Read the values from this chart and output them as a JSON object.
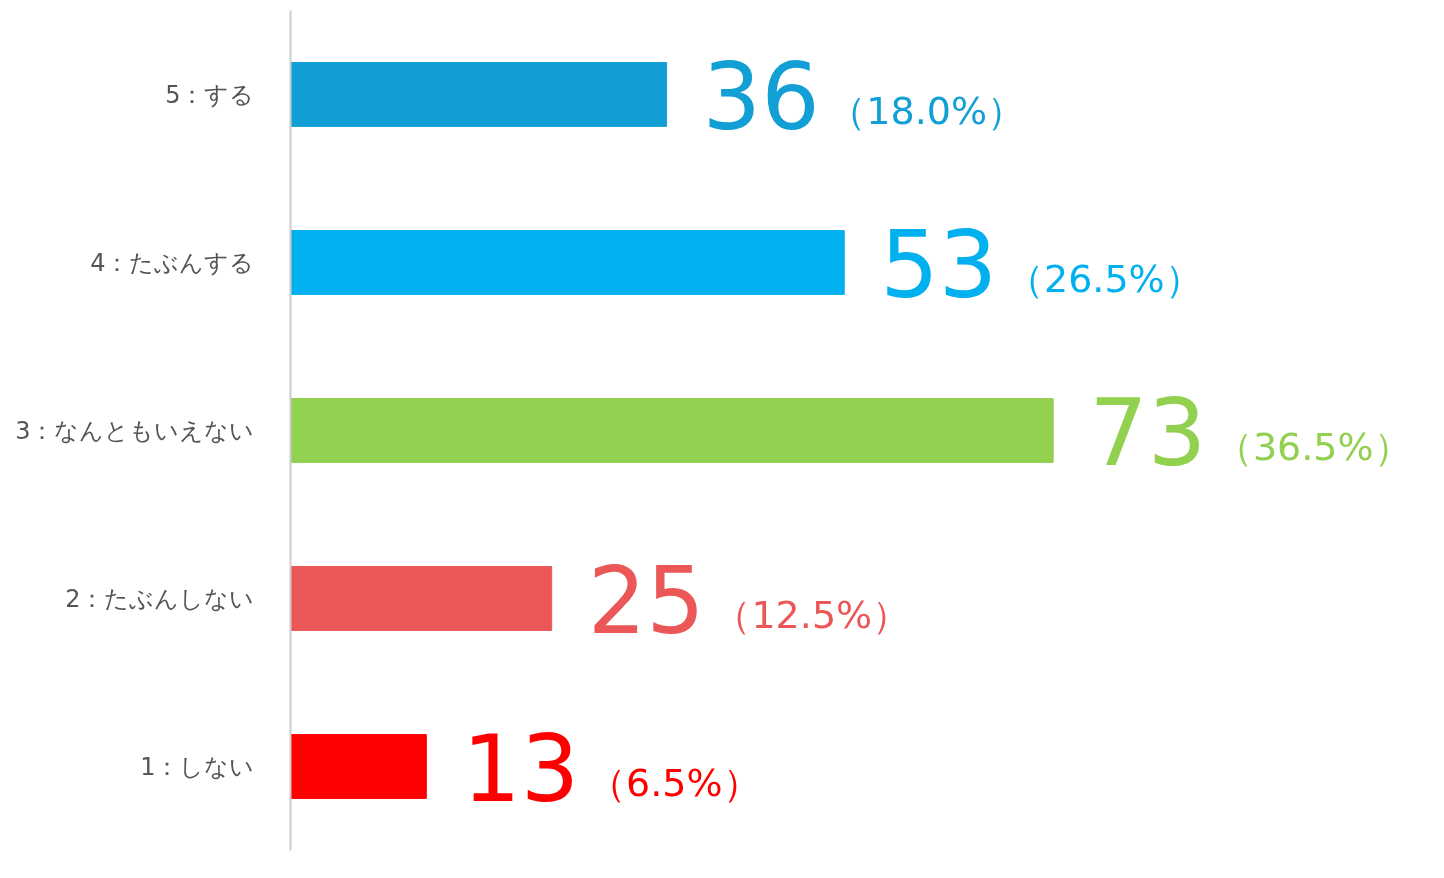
{
  "chart_data": {
    "type": "bar",
    "orientation": "horizontal",
    "categories": [
      "5：する",
      "4：たぶんする",
      "3：なんともいえない",
      "2：たぶんしない",
      "1：しない"
    ],
    "values": [
      36,
      53,
      73,
      25,
      13
    ],
    "colors": [
      "#119fd6",
      "#00b0ef",
      "#92d050",
      "#eb5757",
      "#ff0000"
    ],
    "value_labels": [
      "36（18.0%）",
      "53（26.5%）",
      "73（36.5%）",
      "25（12.5%）",
      "13（6.5%）"
    ],
    "grid": false
  }
}
